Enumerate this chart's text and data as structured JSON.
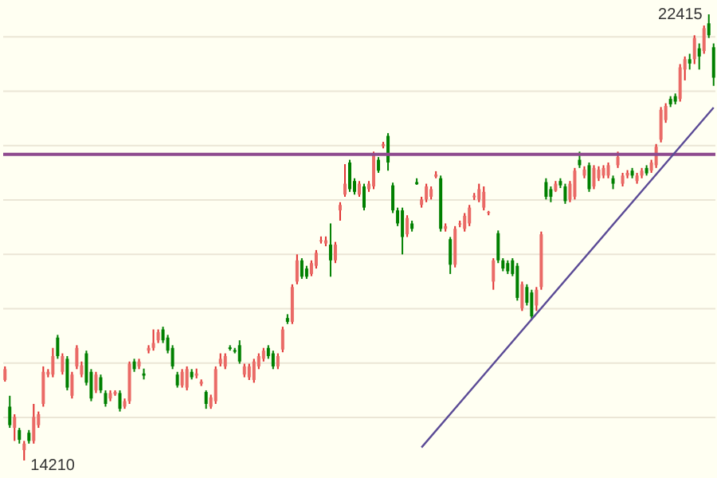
{
  "chart_data": {
    "type": "candlestick",
    "categories": [
      null,
      null,
      null,
      null,
      null,
      null,
      null,
      null,
      null,
      null,
      null,
      null,
      null,
      null,
      null,
      null,
      null,
      null,
      null,
      null,
      null,
      null,
      null,
      null,
      null,
      null,
      null,
      null,
      null,
      null,
      null,
      null,
      null,
      null,
      null,
      null,
      null,
      null,
      null,
      null,
      null,
      null,
      null,
      null,
      null,
      null,
      null,
      null,
      null,
      null,
      null,
      null,
      null,
      null,
      null,
      null,
      null,
      null,
      null,
      null,
      null,
      null,
      null,
      null,
      null,
      null,
      null,
      null,
      null,
      null,
      null,
      null,
      null,
      null,
      null,
      null,
      null,
      null,
      null,
      null,
      null,
      null,
      null,
      null,
      null,
      null,
      null,
      null,
      null,
      null,
      null,
      null,
      null,
      null,
      null,
      null,
      null,
      null,
      null,
      null,
      null,
      null,
      null,
      null,
      null,
      null,
      null,
      null,
      null,
      null,
      null,
      null,
      null,
      null,
      null,
      null,
      null,
      null,
      null,
      null,
      null,
      null,
      null,
      null,
      null,
      null,
      null,
      null,
      null,
      null,
      null,
      null,
      null,
      null,
      null,
      null,
      null,
      null,
      null,
      null,
      null,
      null,
      null,
      null,
      null,
      null,
      null,
      null,
      null
    ],
    "ohlc": [
      [
        15690,
        15940,
        15660,
        15890
      ],
      [
        15200,
        15400,
        14810,
        14860
      ],
      [
        14810,
        15060,
        14570,
        15010
      ],
      [
        14770,
        14810,
        14520,
        14590
      ],
      [
        14400,
        14570,
        14210,
        14520
      ],
      [
        14720,
        14770,
        14520,
        14570
      ],
      [
        14570,
        15250,
        14520,
        15010
      ],
      [
        14860,
        15110,
        14810,
        15060
      ],
      [
        15250,
        15940,
        15200,
        15840
      ],
      [
        15790,
        15890,
        15740,
        15840
      ],
      [
        15790,
        16280,
        15740,
        16130
      ],
      [
        16470,
        16520,
        16080,
        16130
      ],
      [
        15840,
        16180,
        15790,
        16130
      ],
      [
        16080,
        16130,
        15500,
        15550
      ],
      [
        15400,
        15840,
        15350,
        15790
      ],
      [
        15940,
        16330,
        15890,
        16280
      ],
      [
        15790,
        16030,
        15740,
        15960
      ],
      [
        16180,
        16230,
        15590,
        15640
      ],
      [
        15840,
        15890,
        15300,
        15350
      ],
      [
        15500,
        15840,
        15450,
        15790
      ],
      [
        15740,
        15790,
        15450,
        15500
      ],
      [
        15450,
        15500,
        15200,
        15250
      ],
      [
        15350,
        15500,
        15300,
        15450
      ],
      [
        15430,
        15500,
        15400,
        15470
      ],
      [
        15450,
        15500,
        15110,
        15160
      ],
      [
        15200,
        15350,
        15160,
        15300
      ],
      [
        15300,
        16030,
        15250,
        15990
      ],
      [
        16030,
        16080,
        15840,
        15890
      ],
      [
        15940,
        16080,
        15890,
        16030
      ],
      [
        15810,
        15900,
        15700,
        15770
      ],
      [
        16230,
        16330,
        16180,
        16280
      ],
      [
        16280,
        16620,
        16230,
        16370
      ],
      [
        16420,
        16620,
        16370,
        16570
      ],
      [
        16620,
        16670,
        16370,
        16420
      ],
      [
        16470,
        16520,
        16180,
        16230
      ],
      [
        16280,
        16330,
        15890,
        15940
      ],
      [
        15790,
        15840,
        15550,
        15590
      ],
      [
        15590,
        15890,
        15550,
        15840
      ],
      [
        15550,
        15940,
        15500,
        15890
      ],
      [
        15840,
        15890,
        15700,
        15740
      ],
      [
        15770,
        15900,
        15720,
        15810
      ],
      [
        15620,
        15700,
        15580,
        15660
      ],
      [
        15470,
        15500,
        15160,
        15250
      ],
      [
        15200,
        15420,
        15160,
        15370
      ],
      [
        15300,
        15940,
        15250,
        15890
      ],
      [
        15990,
        16180,
        15940,
        16080
      ],
      [
        15940,
        16180,
        15890,
        16130
      ],
      [
        16290,
        16330,
        16230,
        16260
      ],
      [
        16240,
        16280,
        16180,
        16210
      ],
      [
        16330,
        16420,
        15990,
        16030
      ],
      [
        15790,
        15990,
        15740,
        15940
      ],
      [
        15740,
        15990,
        15690,
        15940
      ],
      [
        15690,
        16080,
        15640,
        16030
      ],
      [
        15940,
        16180,
        15890,
        16130
      ],
      [
        16080,
        16280,
        16030,
        16230
      ],
      [
        16280,
        16330,
        16080,
        16130
      ],
      [
        16180,
        16230,
        15890,
        15940
      ],
      [
        15940,
        16180,
        15890,
        16130
      ],
      [
        16250,
        16670,
        16200,
        16620
      ],
      [
        16830,
        16900,
        16720,
        16760
      ],
      [
        16760,
        17450,
        16720,
        17400
      ],
      [
        17500,
        18000,
        17450,
        17890
      ],
      [
        17890,
        17930,
        17550,
        17590
      ],
      [
        17740,
        17790,
        17550,
        17590
      ],
      [
        17640,
        17890,
        17600,
        17840
      ],
      [
        17790,
        18080,
        17740,
        18030
      ],
      [
        18240,
        18330,
        18200,
        18260
      ],
      [
        18200,
        18330,
        18150,
        18260
      ],
      [
        18180,
        18570,
        17590,
        17890
      ],
      [
        17890,
        18230,
        17840,
        18180
      ],
      [
        18810,
        18960,
        18620,
        18910
      ],
      [
        19100,
        19660,
        19060,
        19300
      ],
      [
        19690,
        19740,
        19150,
        19200
      ],
      [
        19350,
        19400,
        19100,
        19150
      ],
      [
        19100,
        19350,
        19060,
        19300
      ],
      [
        19250,
        19300,
        18810,
        18860
      ],
      [
        19200,
        19350,
        19150,
        19300
      ],
      [
        19250,
        19890,
        19200,
        19840
      ],
      [
        19740,
        19790,
        19500,
        19540
      ],
      [
        19990,
        20070,
        19950,
        20030
      ],
      [
        20180,
        20230,
        19540,
        19690
      ],
      [
        19270,
        19320,
        18760,
        18810
      ],
      [
        18810,
        18860,
        18520,
        18570
      ],
      [
        18810,
        18860,
        18000,
        18320
      ],
      [
        18370,
        18720,
        18320,
        18670
      ],
      [
        18570,
        18620,
        18420,
        18470
      ],
      [
        19330,
        19400,
        19280,
        19290
      ],
      [
        18910,
        19060,
        18860,
        19010
      ],
      [
        19010,
        19300,
        18960,
        19250
      ],
      [
        19060,
        19250,
        19010,
        19200
      ],
      [
        19430,
        19530,
        19400,
        19470
      ],
      [
        19400,
        19450,
        18420,
        18470
      ],
      [
        18470,
        18570,
        18420,
        18520
      ],
      [
        18280,
        18320,
        17640,
        17810
      ],
      [
        17810,
        18520,
        17760,
        18470
      ],
      [
        18550,
        18620,
        18500,
        18570
      ],
      [
        18470,
        18760,
        18420,
        18710
      ],
      [
        18570,
        18910,
        18520,
        18860
      ],
      [
        19050,
        19130,
        19000,
        19080
      ],
      [
        19010,
        19300,
        18960,
        19200
      ],
      [
        18860,
        19250,
        18810,
        19150
      ],
      [
        18760,
        18800,
        18720,
        18780
      ],
      [
        17500,
        17930,
        17350,
        17890
      ],
      [
        18390,
        18440,
        17840,
        17890
      ],
      [
        17890,
        17930,
        17690,
        17740
      ],
      [
        17840,
        17890,
        17640,
        17690
      ],
      [
        17890,
        17930,
        17600,
        17640
      ],
      [
        17790,
        17840,
        17150,
        17200
      ],
      [
        17010,
        17500,
        16960,
        17450
      ],
      [
        17400,
        17450,
        17060,
        17110
      ],
      [
        17300,
        17350,
        16820,
        16860
      ],
      [
        17060,
        17400,
        16960,
        17350
      ],
      [
        17400,
        18420,
        17350,
        18370
      ],
      [
        19330,
        19400,
        19010,
        19060
      ],
      [
        19200,
        19250,
        18960,
        19060
      ],
      [
        19170,
        19350,
        19150,
        19300
      ],
      [
        19350,
        19400,
        19220,
        19270
      ],
      [
        19250,
        19300,
        18930,
        18980
      ],
      [
        19010,
        19350,
        18960,
        19300
      ],
      [
        19060,
        19590,
        19010,
        19540
      ],
      [
        19740,
        19890,
        19590,
        19640
      ],
      [
        19450,
        19620,
        19400,
        19560
      ],
      [
        19640,
        19690,
        19150,
        19200
      ],
      [
        19250,
        19640,
        19200,
        19590
      ],
      [
        19400,
        19620,
        19350,
        19560
      ],
      [
        19450,
        19640,
        19400,
        19590
      ],
      [
        19450,
        19690,
        19400,
        19640
      ],
      [
        19400,
        19450,
        19200,
        19300
      ],
      [
        19640,
        19890,
        19590,
        19790
      ],
      [
        19300,
        19500,
        19250,
        19450
      ],
      [
        19450,
        19550,
        19400,
        19500
      ],
      [
        19540,
        19590,
        19400,
        19450
      ],
      [
        19350,
        19500,
        19300,
        19450
      ],
      [
        19450,
        19590,
        19400,
        19540
      ],
      [
        19590,
        19640,
        19450,
        19490
      ],
      [
        19540,
        19740,
        19500,
        19690
      ],
      [
        19640,
        20030,
        19590,
        19980
      ],
      [
        20110,
        20710,
        20060,
        20660
      ],
      [
        20470,
        20780,
        20420,
        20730
      ],
      [
        20860,
        20910,
        20710,
        20760
      ],
      [
        20910,
        20960,
        20760,
        20810
      ],
      [
        20860,
        21500,
        20810,
        21440
      ],
      [
        21400,
        21640,
        21200,
        21590
      ],
      [
        21590,
        21690,
        21400,
        21510
      ],
      [
        21590,
        22030,
        21500,
        21980
      ],
      [
        21790,
        21880,
        21400,
        21640
      ],
      [
        21740,
        22210,
        21690,
        22160
      ],
      [
        22250,
        22415,
        21980,
        22030
      ],
      [
        21810,
        21880,
        21100,
        21250
      ]
    ],
    "series": [
      {
        "type": "line",
        "color": "#5b4b96",
        "values": [
          null,
          null,
          null,
          null,
          null,
          null,
          null,
          null,
          null,
          null,
          null,
          null,
          null,
          null,
          null,
          null,
          null,
          null,
          null,
          null,
          null,
          null,
          null,
          null,
          null,
          null,
          null,
          null,
          null,
          null,
          null,
          null,
          null,
          null,
          null,
          null,
          null,
          null,
          null,
          null,
          null,
          null,
          null,
          null,
          null,
          null,
          null,
          null,
          null,
          null,
          null,
          null,
          null,
          null,
          null,
          null,
          null,
          null,
          null,
          null,
          null,
          null,
          null,
          null,
          null,
          null,
          null,
          null,
          null,
          null,
          null,
          null,
          null,
          null,
          null,
          null,
          null,
          null,
          null,
          null,
          null,
          null,
          null,
          null,
          null,
          null,
          null,
          14450,
          null,
          null,
          null,
          null,
          null,
          null,
          null,
          null,
          null,
          null,
          null,
          null,
          null,
          null,
          null,
          null,
          null,
          null,
          null,
          null,
          null,
          null,
          null,
          null,
          null,
          null,
          null,
          null,
          null,
          null,
          null,
          null,
          null,
          null,
          null,
          null,
          null,
          null,
          null,
          null,
          null,
          null,
          null,
          null,
          null,
          null,
          null,
          null,
          null,
          null,
          null,
          null,
          null,
          null,
          null,
          null,
          null,
          null,
          null,
          null,
          20700
        ]
      }
    ],
    "yticks": [
      {
        "value": 15000,
        "label": null
      },
      {
        "value": 16000,
        "label": null
      },
      {
        "value": 17000,
        "label": null
      },
      {
        "value": 18000,
        "label": null
      },
      {
        "value": 19000,
        "label": null
      },
      {
        "value": 20000,
        "label": null
      },
      {
        "value": 21000,
        "label": null
      },
      {
        "value": 22000,
        "label": null
      }
    ],
    "grid": "y",
    "tick_labels": false,
    "ref_lines": [
      {
        "axis": "y",
        "value": 19840,
        "color": "#8e4a8e"
      }
    ],
    "annotations": [
      "22415",
      "14210"
    ]
  }
}
